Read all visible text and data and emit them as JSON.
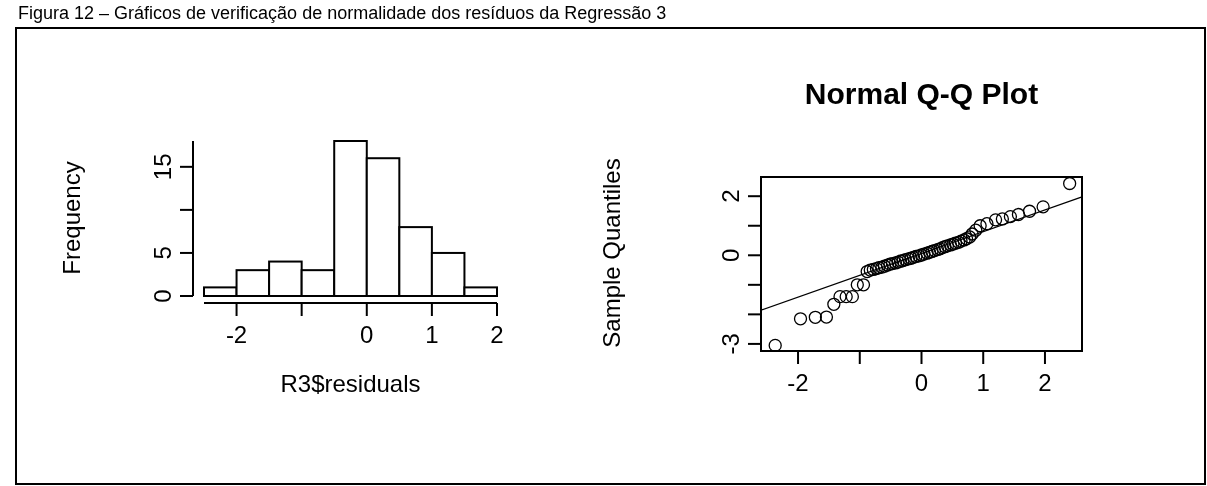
{
  "chart_data": [
    {
      "type": "histogram",
      "xlabel": "R3$residuals",
      "ylabel": "Frequency",
      "annotations": [
        "Figura 12 – Gráficos de verificação de normalidade dos resíduos da Regressão 3"
      ],
      "bins": [
        -2.5,
        -2,
        -1.5,
        -1,
        -0.5,
        0,
        0.5,
        1,
        1.5,
        2
      ],
      "values": [
        1,
        3,
        4,
        3,
        18,
        16,
        8,
        5,
        1
      ],
      "color": "#ffffff",
      "xlim": [
        -2.5,
        2
      ],
      "xticks": [
        -2,
        {
          "value": -1,
          "label": null
        },
        0,
        1,
        2
      ],
      "ylim": [
        0,
        18
      ],
      "yticks": [
        0,
        5,
        {
          "value": 10,
          "label": null
        },
        15
      ]
    },
    {
      "type": "scatter",
      "title": "Normal Q-Q Plot",
      "ylabel": "Sample Quantiles",
      "xlim": [
        -2.6,
        2.6
      ],
      "ylim": [
        -3.24,
        2.65
      ],
      "xticks": [
        -2,
        {
          "value": -1,
          "label": null
        },
        0,
        1,
        2
      ],
      "yticks": [
        {
          "value": -3,
          "label": "-3"
        },
        {
          "value": -2,
          "label": null
        },
        {
          "value": -1,
          "label": null
        },
        0,
        {
          "value": 1,
          "label": null
        },
        2
      ],
      "series": [
        {
          "marker": "circle",
          "color": "#000000",
          "x": [
            -2.37,
            -1.96,
            -1.72,
            -1.54,
            -1.42,
            -1.32,
            -1.22,
            -1.12,
            -1.04,
            -0.94,
            -0.88,
            -0.83,
            -0.78,
            -0.73,
            -0.69,
            -0.64,
            -0.6,
            -0.55,
            -0.51,
            -0.47,
            -0.42,
            -0.38,
            -0.34,
            -0.3,
            -0.26,
            -0.21,
            -0.17,
            -0.13,
            -0.09,
            -0.04,
            0,
            0.04,
            0.09,
            0.13,
            0.17,
            0.21,
            0.26,
            0.3,
            0.34,
            0.38,
            0.42,
            0.47,
            0.51,
            0.55,
            0.6,
            0.64,
            0.69,
            0.73,
            0.78,
            0.82,
            0.88,
            0.95,
            1.06,
            1.2,
            1.31,
            1.44,
            1.57,
            1.75,
            1.97,
            2.4
          ],
          "values": [
            -3.05,
            -2.15,
            -2.1,
            -2.09,
            -1.66,
            -1.4,
            -1.4,
            -1.4,
            -1.0,
            -1.0,
            -0.55,
            -0.5,
            -0.48,
            -0.45,
            -0.42,
            -0.4,
            -0.37,
            -0.33,
            -0.3,
            -0.28,
            -0.26,
            -0.23,
            -0.2,
            -0.18,
            -0.15,
            -0.12,
            -0.1,
            -0.07,
            -0.04,
            -0.02,
            0.01,
            0.04,
            0.07,
            0.1,
            0.13,
            0.16,
            0.19,
            0.22,
            0.26,
            0.29,
            0.32,
            0.35,
            0.38,
            0.41,
            0.44,
            0.48,
            0.52,
            0.56,
            0.62,
            0.72,
            0.85,
            1.0,
            1.07,
            1.2,
            1.23,
            1.31,
            1.38,
            1.49,
            1.64,
            2.43
          ]
        },
        {
          "type": "line",
          "color": "#000000",
          "x": [
            -2.6,
            2.6
          ],
          "values": [
            -1.86,
            1.98
          ]
        }
      ]
    }
  ]
}
